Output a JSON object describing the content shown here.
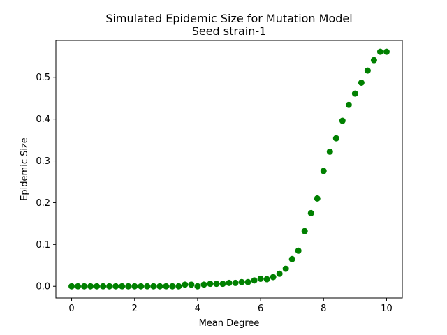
{
  "chart_data": {
    "type": "scatter",
    "title": "Simulated Epidemic Size for Mutation Model",
    "subtitle": "Seed strain-1",
    "xlabel": "Mean Degree",
    "ylabel": "Epidemic Size",
    "xlim": [
      -0.5,
      10.5
    ],
    "ylim": [
      -0.028,
      0.588
    ],
    "xticks": [
      0,
      2,
      4,
      6,
      8,
      10
    ],
    "yticks": [
      0.0,
      0.1,
      0.2,
      0.3,
      0.4,
      0.5
    ],
    "xtick_labels": [
      "0",
      "2",
      "4",
      "6",
      "8",
      "10"
    ],
    "ytick_labels": [
      "0.0",
      "0.1",
      "0.2",
      "0.3",
      "0.4",
      "0.5"
    ],
    "grid": false,
    "marker_color": "#008000",
    "x": [
      0.0,
      0.2,
      0.4,
      0.6,
      0.8,
      1.0,
      1.2,
      1.4,
      1.6,
      1.8,
      2.0,
      2.2,
      2.4,
      2.6,
      2.8,
      3.0,
      3.2,
      3.4,
      3.6,
      3.8,
      4.0,
      4.2,
      4.4,
      4.6,
      4.8,
      5.0,
      5.2,
      5.4,
      5.6,
      5.8,
      6.0,
      6.2,
      6.4,
      6.6,
      6.8,
      7.0,
      7.2,
      7.4,
      7.6,
      7.8,
      8.0,
      8.2,
      8.4,
      8.6,
      8.8,
      9.0,
      9.2,
      9.4,
      9.6,
      9.8,
      10.0
    ],
    "y": [
      0.0,
      0.0,
      0.0,
      0.0,
      0.0,
      0.0,
      0.0,
      0.0,
      0.0,
      0.0,
      0.0,
      0.0,
      0.0,
      0.0,
      0.0,
      0.0,
      0.0,
      0.0,
      0.004,
      0.004,
      0.0,
      0.004,
      0.006,
      0.006,
      0.006,
      0.008,
      0.008,
      0.01,
      0.01,
      0.014,
      0.018,
      0.017,
      0.022,
      0.03,
      0.042,
      0.065,
      0.085,
      0.132,
      0.175,
      0.21,
      0.276,
      0.322,
      0.354,
      0.396,
      0.434,
      0.461,
      0.487,
      0.516,
      0.541,
      0.561,
      0.561
    ]
  }
}
